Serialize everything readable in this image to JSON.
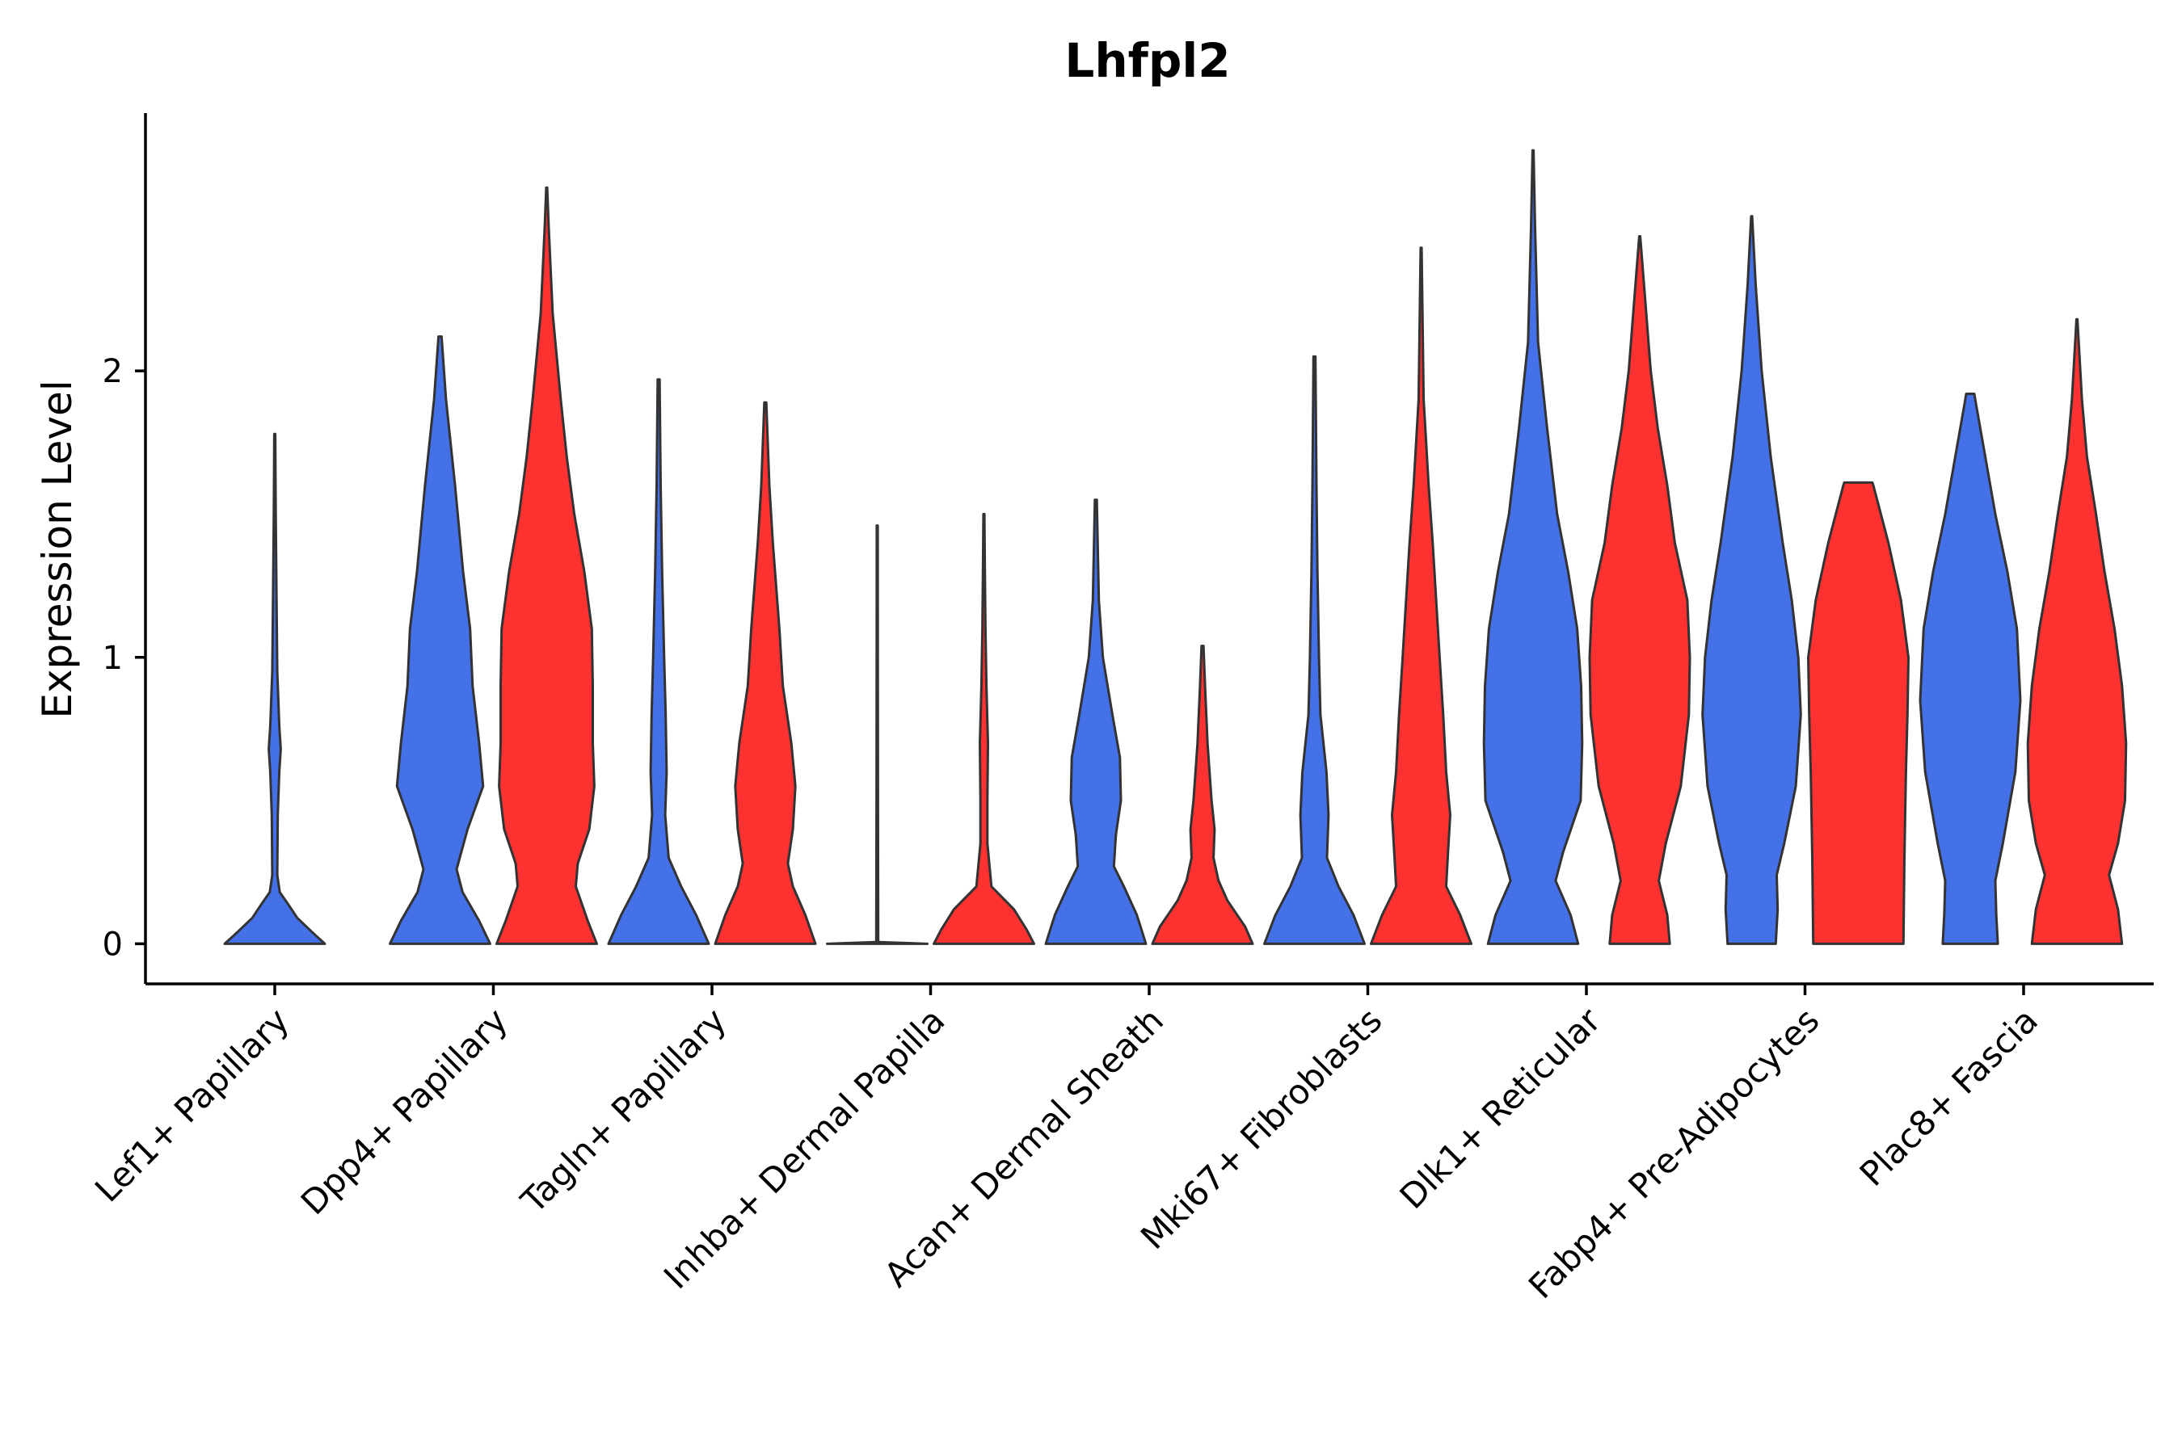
{
  "chart_data": {
    "type": "violin",
    "title": "Lhfpl2",
    "xlabel": "",
    "ylabel": "Expression Level",
    "ylim": [
      -0.14,
      2.9
    ],
    "yticks": [
      0,
      1,
      2
    ],
    "ytick_labels": [
      "0",
      "1",
      "2"
    ],
    "grid": false,
    "legend": "none",
    "colors": {
      "blue": "#4470E8",
      "red": "#FF3131",
      "outline": "#333333",
      "axis": "#000000"
    },
    "categories": [
      "Lef1+ Papillary",
      "Dpp4+ Papillary",
      "Tagln+ Papillary",
      "Inhba+ Dermal Papilla",
      "Acan+ Dermal Sheath",
      "Mki67+ Fibroblasts",
      "Dlk1+ Reticular",
      "Fabp4+ Pre-Adipocytes",
      "Plac8+ Fascia"
    ],
    "series": [
      {
        "name": "blue group",
        "color": "#4470E8",
        "violins": [
          {
            "category": "Lef1+ Papillary",
            "max": 1.78,
            "profile": [
              [
                0,
                1
              ],
              [
                0.04,
                0.75
              ],
              [
                0.09,
                0.45
              ],
              [
                0.14,
                0.26
              ],
              [
                0.18,
                0.1
              ],
              [
                0.24,
                0.05
              ],
              [
                0.45,
                0.06
              ],
              [
                0.6,
                0.09
              ],
              [
                0.68,
                0.12
              ],
              [
                0.76,
                0.09
              ],
              [
                0.95,
                0.05
              ],
              [
                1.2,
                0.035
              ],
              [
                1.5,
                0.02
              ],
              [
                1.78,
                0.01
              ]
            ]
          },
          {
            "category": "Dpp4+ Papillary",
            "max": 2.12,
            "profile": [
              [
                0,
                1
              ],
              [
                0.08,
                0.78
              ],
              [
                0.18,
                0.45
              ],
              [
                0.26,
                0.33
              ],
              [
                0.4,
                0.55
              ],
              [
                0.55,
                0.86
              ],
              [
                0.7,
                0.78
              ],
              [
                0.9,
                0.65
              ],
              [
                1.1,
                0.6
              ],
              [
                1.3,
                0.46
              ],
              [
                1.6,
                0.3
              ],
              [
                1.9,
                0.12
              ],
              [
                2.12,
                0.03
              ]
            ]
          },
          {
            "category": "Tagln+ Papillary",
            "max": 1.97,
            "profile": [
              [
                0,
                1
              ],
              [
                0.1,
                0.75
              ],
              [
                0.2,
                0.45
              ],
              [
                0.3,
                0.2
              ],
              [
                0.45,
                0.13
              ],
              [
                0.6,
                0.16
              ],
              [
                0.8,
                0.14
              ],
              [
                1.0,
                0.11
              ],
              [
                1.3,
                0.07
              ],
              [
                1.6,
                0.04
              ],
              [
                1.97,
                0.02
              ]
            ]
          },
          {
            "category": "Inhba+ Dermal Papilla",
            "max": 1.46,
            "profile": [
              [
                0,
                1
              ],
              [
                0.003,
                0.5
              ],
              [
                0.006,
                0.02
              ],
              [
                0.5,
                0.015
              ],
              [
                1.0,
                0.012
              ],
              [
                1.46,
                0.01
              ]
            ]
          },
          {
            "category": "Acan+ Dermal Sheath",
            "max": 1.55,
            "profile": [
              [
                0,
                1
              ],
              [
                0.1,
                0.82
              ],
              [
                0.2,
                0.56
              ],
              [
                0.27,
                0.36
              ],
              [
                0.38,
                0.4
              ],
              [
                0.5,
                0.5
              ],
              [
                0.65,
                0.48
              ],
              [
                0.8,
                0.33
              ],
              [
                1.0,
                0.14
              ],
              [
                1.2,
                0.06
              ],
              [
                1.55,
                0.02
              ]
            ]
          },
          {
            "category": "Mki67+ Fibroblasts",
            "max": 2.05,
            "profile": [
              [
                0,
                1
              ],
              [
                0.1,
                0.78
              ],
              [
                0.2,
                0.48
              ],
              [
                0.3,
                0.25
              ],
              [
                0.45,
                0.28
              ],
              [
                0.6,
                0.24
              ],
              [
                0.8,
                0.12
              ],
              [
                1.0,
                0.09
              ],
              [
                1.3,
                0.06
              ],
              [
                1.6,
                0.04
              ],
              [
                2.05,
                0.02
              ]
            ]
          },
          {
            "category": "Dlk1+ Reticular",
            "max": 2.77,
            "profile": [
              [
                0,
                0.9
              ],
              [
                0.1,
                0.75
              ],
              [
                0.22,
                0.45
              ],
              [
                0.32,
                0.6
              ],
              [
                0.5,
                0.95
              ],
              [
                0.7,
                0.98
              ],
              [
                0.9,
                0.96
              ],
              [
                1.1,
                0.88
              ],
              [
                1.3,
                0.7
              ],
              [
                1.5,
                0.48
              ],
              [
                1.8,
                0.28
              ],
              [
                2.1,
                0.1
              ],
              [
                2.5,
                0.04
              ],
              [
                2.77,
                0.01
              ]
            ]
          },
          {
            "category": "Fabp4+ Pre-Adipocytes",
            "max": 2.54,
            "profile": [
              [
                0,
                0.48
              ],
              [
                0.12,
                0.52
              ],
              [
                0.24,
                0.5
              ],
              [
                0.35,
                0.65
              ],
              [
                0.55,
                0.88
              ],
              [
                0.8,
                0.98
              ],
              [
                1.0,
                0.93
              ],
              [
                1.2,
                0.8
              ],
              [
                1.4,
                0.62
              ],
              [
                1.7,
                0.38
              ],
              [
                2.0,
                0.2
              ],
              [
                2.3,
                0.08
              ],
              [
                2.54,
                0.01
              ]
            ]
          },
          {
            "category": "Plac8+ Fascia",
            "max": 1.92,
            "profile": [
              [
                0,
                0.55
              ],
              [
                0.1,
                0.52
              ],
              [
                0.22,
                0.5
              ],
              [
                0.35,
                0.65
              ],
              [
                0.6,
                0.9
              ],
              [
                0.85,
                1
              ],
              [
                1.1,
                0.93
              ],
              [
                1.3,
                0.74
              ],
              [
                1.5,
                0.5
              ],
              [
                1.7,
                0.3
              ],
              [
                1.88,
                0.12
              ],
              [
                1.92,
                0.08
              ]
            ]
          }
        ]
      },
      {
        "name": "red group",
        "color": "#FF3131",
        "violins": [
          {
            "category": "Dpp4+ Papillary",
            "max": 2.64,
            "profile": [
              [
                0,
                1
              ],
              [
                0.08,
                0.82
              ],
              [
                0.2,
                0.58
              ],
              [
                0.28,
                0.62
              ],
              [
                0.4,
                0.85
              ],
              [
                0.55,
                0.95
              ],
              [
                0.7,
                0.92
              ],
              [
                0.9,
                0.92
              ],
              [
                1.1,
                0.9
              ],
              [
                1.3,
                0.75
              ],
              [
                1.5,
                0.55
              ],
              [
                1.7,
                0.4
              ],
              [
                1.9,
                0.28
              ],
              [
                2.2,
                0.12
              ],
              [
                2.5,
                0.04
              ],
              [
                2.64,
                0.01
              ]
            ]
          },
          {
            "category": "Tagln+ Papillary",
            "max": 1.89,
            "profile": [
              [
                0,
                1
              ],
              [
                0.1,
                0.8
              ],
              [
                0.2,
                0.55
              ],
              [
                0.28,
                0.45
              ],
              [
                0.4,
                0.55
              ],
              [
                0.55,
                0.6
              ],
              [
                0.7,
                0.52
              ],
              [
                0.9,
                0.35
              ],
              [
                1.1,
                0.28
              ],
              [
                1.4,
                0.15
              ],
              [
                1.6,
                0.08
              ],
              [
                1.89,
                0.02
              ]
            ]
          },
          {
            "category": "Inhba+ Dermal Papilla",
            "max": 1.5,
            "profile": [
              [
                0,
                1
              ],
              [
                0.05,
                0.85
              ],
              [
                0.12,
                0.6
              ],
              [
                0.2,
                0.15
              ],
              [
                0.35,
                0.07
              ],
              [
                0.5,
                0.07
              ],
              [
                0.7,
                0.08
              ],
              [
                0.9,
                0.05
              ],
              [
                1.1,
                0.03
              ],
              [
                1.3,
                0.02
              ],
              [
                1.5,
                0.01
              ]
            ]
          },
          {
            "category": "Acan+ Dermal Sheath",
            "max": 1.04,
            "profile": [
              [
                0,
                1
              ],
              [
                0.06,
                0.85
              ],
              [
                0.15,
                0.5
              ],
              [
                0.22,
                0.32
              ],
              [
                0.3,
                0.22
              ],
              [
                0.4,
                0.24
              ],
              [
                0.5,
                0.18
              ],
              [
                0.7,
                0.1
              ],
              [
                0.9,
                0.05
              ],
              [
                1.04,
                0.02
              ]
            ]
          },
          {
            "category": "Mki67+ Fibroblasts",
            "max": 2.43,
            "profile": [
              [
                0,
                1
              ],
              [
                0.1,
                0.78
              ],
              [
                0.2,
                0.5
              ],
              [
                0.3,
                0.53
              ],
              [
                0.45,
                0.58
              ],
              [
                0.6,
                0.5
              ],
              [
                0.8,
                0.44
              ],
              [
                1.0,
                0.37
              ],
              [
                1.2,
                0.3
              ],
              [
                1.4,
                0.23
              ],
              [
                1.6,
                0.15
              ],
              [
                1.9,
                0.05
              ],
              [
                2.43,
                0.01
              ]
            ]
          },
          {
            "category": "Dlk1+ Reticular",
            "max": 2.47,
            "profile": [
              [
                0,
                0.6
              ],
              [
                0.1,
                0.55
              ],
              [
                0.22,
                0.38
              ],
              [
                0.35,
                0.52
              ],
              [
                0.55,
                0.82
              ],
              [
                0.8,
                0.98
              ],
              [
                1.0,
                1
              ],
              [
                1.2,
                0.95
              ],
              [
                1.4,
                0.7
              ],
              [
                1.6,
                0.55
              ],
              [
                1.8,
                0.36
              ],
              [
                2.0,
                0.22
              ],
              [
                2.2,
                0.13
              ],
              [
                2.47,
                0.01
              ]
            ]
          },
          {
            "category": "Fabp4+ Pre-Adipocytes",
            "max": 1.61,
            "profile": [
              [
                0,
                0.9
              ],
              [
                0.3,
                0.92
              ],
              [
                0.6,
                0.95
              ],
              [
                0.8,
                0.98
              ],
              [
                1.0,
                1
              ],
              [
                1.2,
                0.85
              ],
              [
                1.4,
                0.6
              ],
              [
                1.6,
                0.3
              ],
              [
                1.61,
                0.28
              ]
            ]
          },
          {
            "category": "Plac8+ Fascia",
            "max": 2.18,
            "profile": [
              [
                0,
                0.9
              ],
              [
                0.12,
                0.82
              ],
              [
                0.24,
                0.64
              ],
              [
                0.35,
                0.82
              ],
              [
                0.5,
                0.96
              ],
              [
                0.7,
                0.98
              ],
              [
                0.9,
                0.9
              ],
              [
                1.1,
                0.75
              ],
              [
                1.3,
                0.55
              ],
              [
                1.5,
                0.38
              ],
              [
                1.7,
                0.2
              ],
              [
                1.9,
                0.1
              ],
              [
                2.18,
                0.01
              ]
            ]
          }
        ]
      }
    ]
  }
}
